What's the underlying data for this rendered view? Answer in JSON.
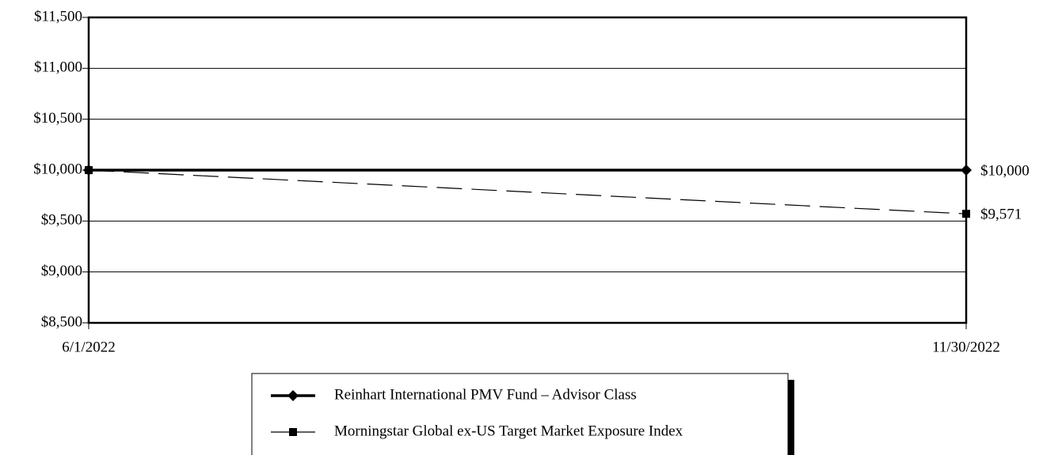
{
  "chart_data": {
    "type": "line",
    "categories": [
      "6/1/2022",
      "11/30/2022"
    ],
    "series": [
      {
        "name": "Reinhart International PMV Fund – Advisor Class",
        "color": "#000000",
        "line_style": "solid",
        "marker": "diamond",
        "values": [
          10000,
          10000
        ],
        "value_labels": [
          null,
          "$10,000"
        ]
      },
      {
        "name": "Morningstar Global ex-US Target Market Exposure Index",
        "color": "#000000",
        "line_style": "dashed",
        "marker": "square",
        "values": [
          10000,
          9571
        ],
        "value_labels": [
          null,
          "$9,571"
        ]
      }
    ],
    "ylim": [
      8500,
      11500
    ],
    "yticks": [
      {
        "value": 8500,
        "label": "$8,500"
      },
      {
        "value": 9000,
        "label": "$9,000"
      },
      {
        "value": 9500,
        "label": "$9,500"
      },
      {
        "value": 10000,
        "label": "$10,000"
      },
      {
        "value": 10500,
        "label": "$10,500"
      },
      {
        "value": 11000,
        "label": "$11,000"
      },
      {
        "value": 11500,
        "label": "$11,500"
      }
    ],
    "grid": true
  }
}
